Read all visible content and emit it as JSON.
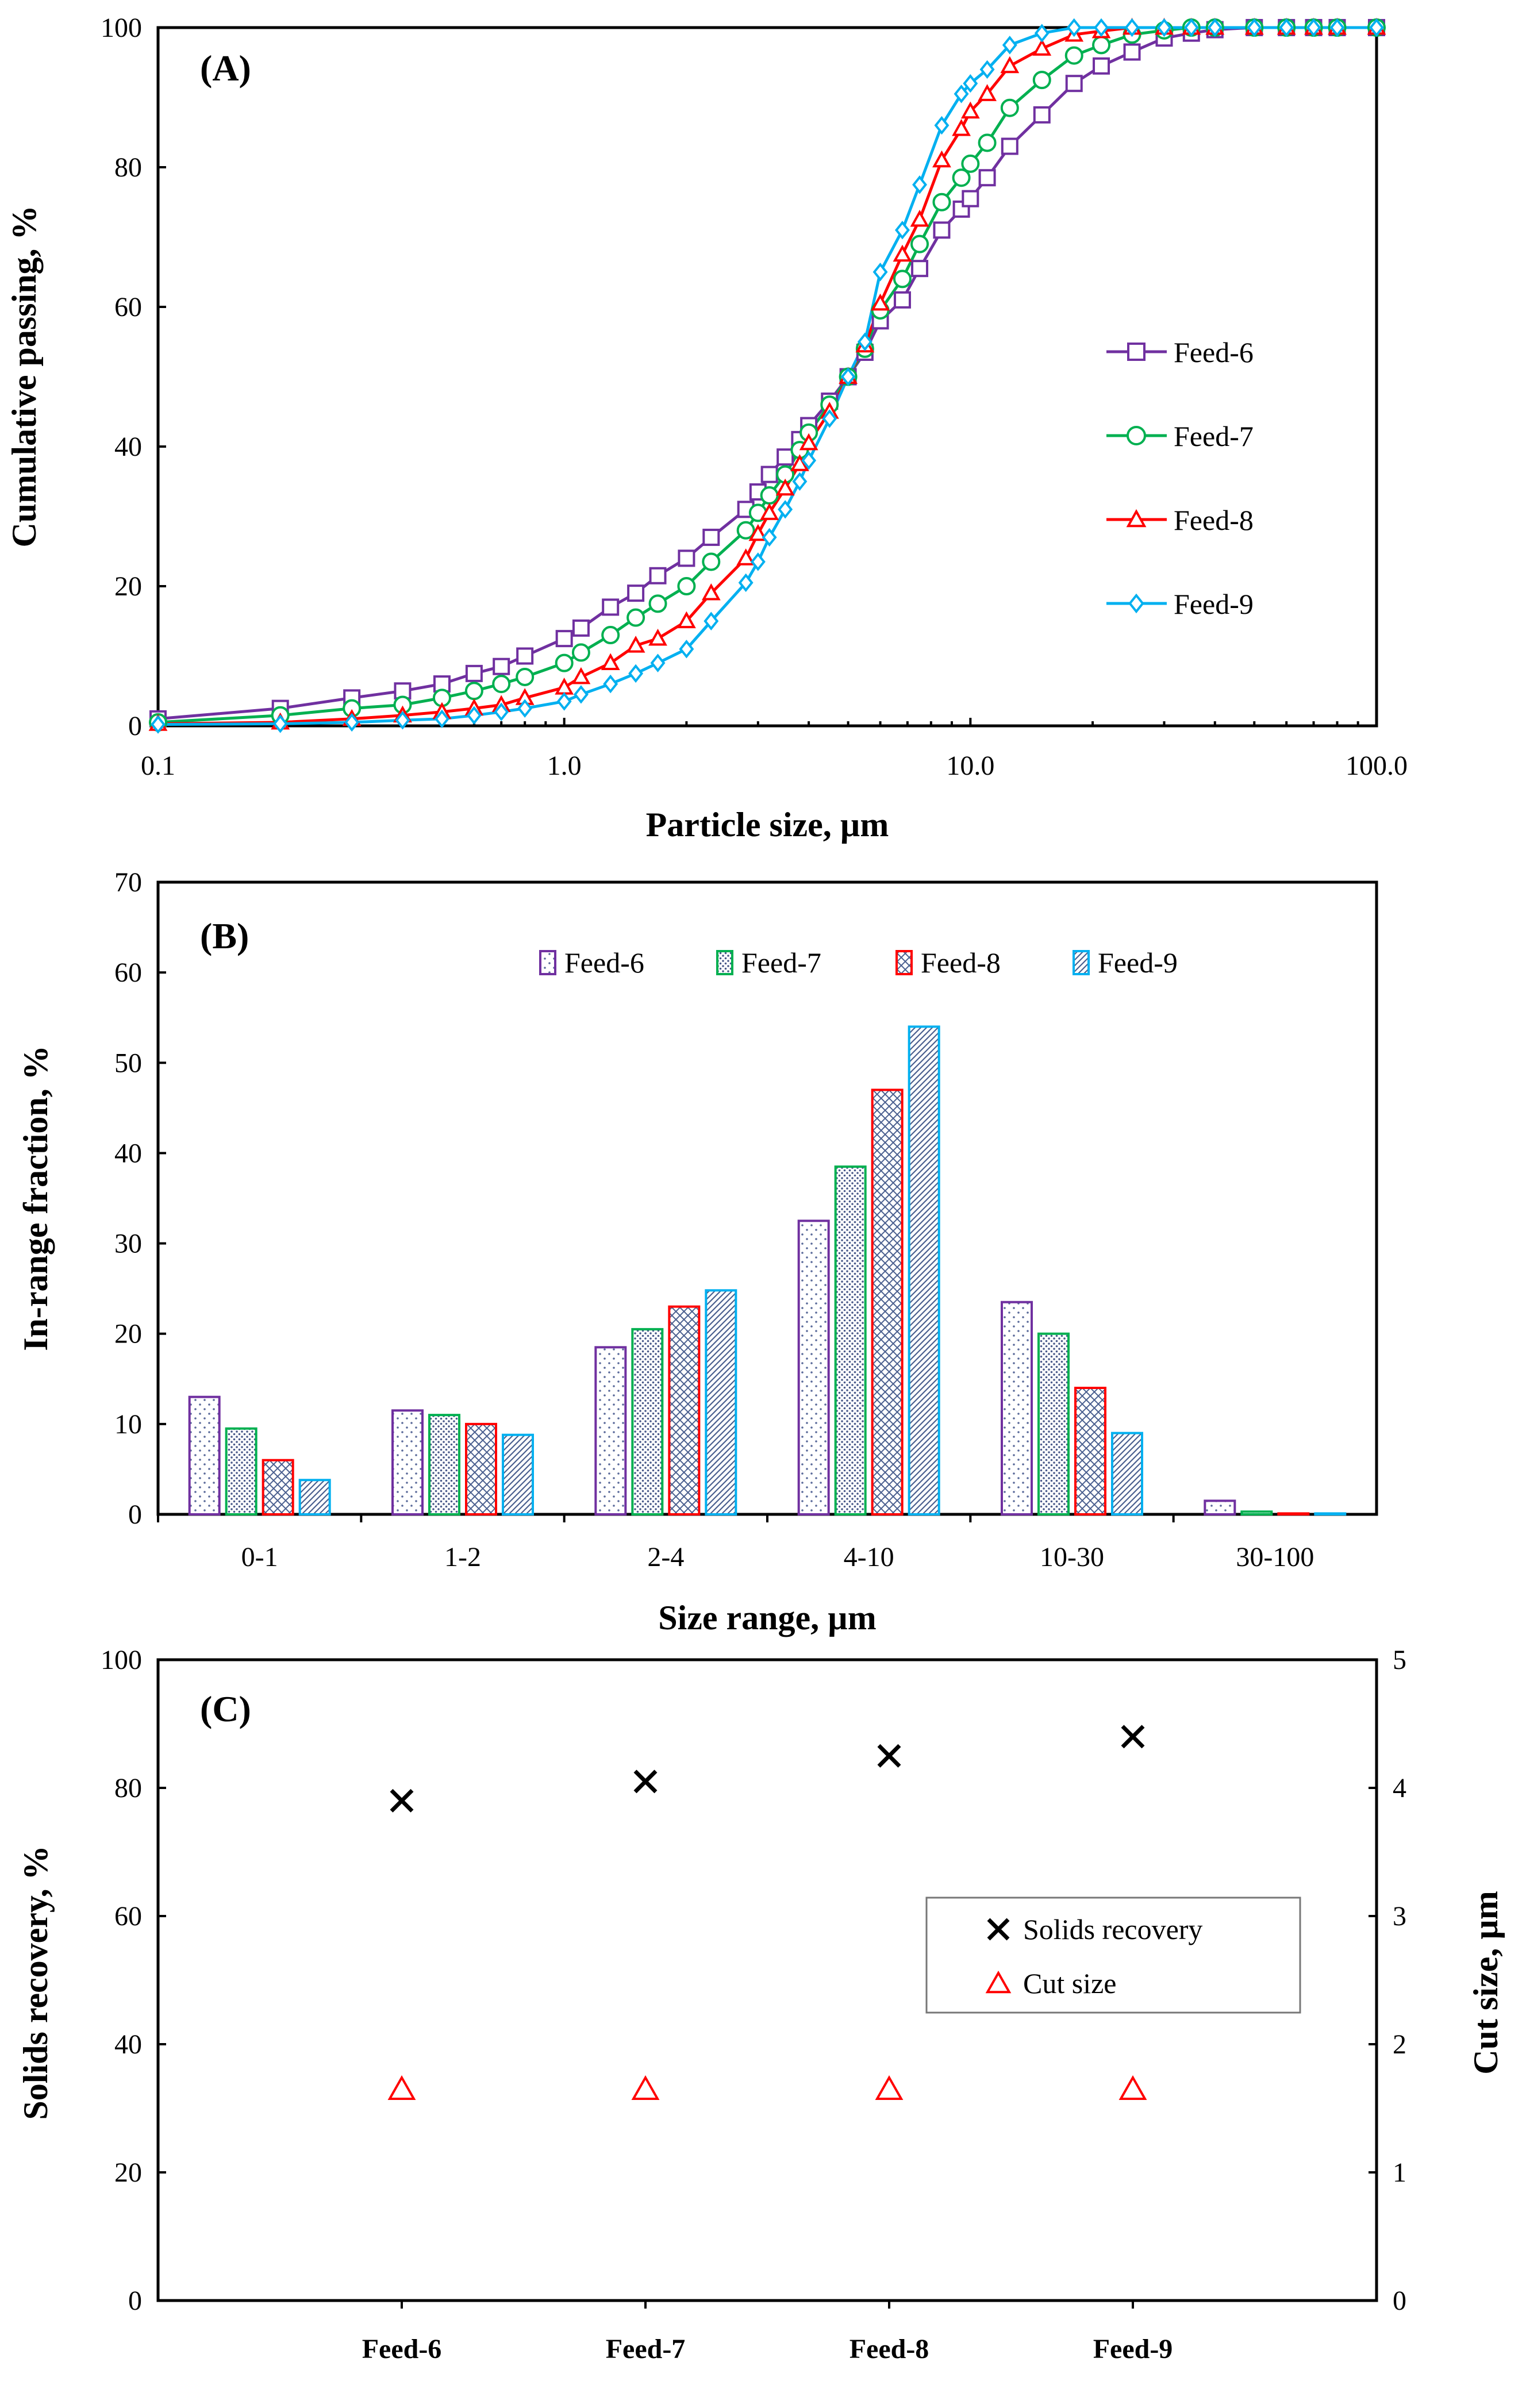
{
  "chart_data": [
    {
      "panel": "(A)",
      "type": "line",
      "xscale": "log",
      "xlim": [
        0.1,
        100.0
      ],
      "ylim": [
        0,
        100
      ],
      "xlabel": "Particle size, µm",
      "ylabel": "Cumulative passing, %",
      "x_ticks": [
        "0.1",
        "1.0",
        "10.0",
        "100.0"
      ],
      "y_ticks": [
        "0",
        "20",
        "40",
        "60",
        "80",
        "100"
      ],
      "legend_position": "right-center",
      "series": [
        {
          "name": "Feed-6",
          "color": "#7030a0",
          "marker": "square",
          "x": [
            0.1,
            0.2,
            0.3,
            0.4,
            0.5,
            0.6,
            0.7,
            0.8,
            1.0,
            1.1,
            1.3,
            1.5,
            1.7,
            2.0,
            2.3,
            2.8,
            3.0,
            3.2,
            3.5,
            3.8,
            4.0,
            4.5,
            5.0,
            5.5,
            6.0,
            6.8,
            7.5,
            8.5,
            9.5,
            10.0,
            11.0,
            12.5,
            15.0,
            18.0,
            21.0,
            25.0,
            30.0,
            35.0,
            40.0,
            50.0,
            60.0,
            70.0,
            80.0,
            100.0
          ],
          "y": [
            1.0,
            2.5,
            4.0,
            5.0,
            6.0,
            7.5,
            8.5,
            10.0,
            12.5,
            14.0,
            17.0,
            19.0,
            21.5,
            24.0,
            27.0,
            31.0,
            33.5,
            36.0,
            38.5,
            41.0,
            43.0,
            46.5,
            50.0,
            53.5,
            58.0,
            61.0,
            65.5,
            71.0,
            74.0,
            75.5,
            78.5,
            83.0,
            87.5,
            92.0,
            94.5,
            96.5,
            98.5,
            99.2,
            99.7,
            100,
            100,
            100,
            100,
            100
          ]
        },
        {
          "name": "Feed-7",
          "color": "#00b050",
          "marker": "circle",
          "x": [
            0.1,
            0.2,
            0.3,
            0.4,
            0.5,
            0.6,
            0.7,
            0.8,
            1.0,
            1.1,
            1.3,
            1.5,
            1.7,
            2.0,
            2.3,
            2.8,
            3.0,
            3.2,
            3.5,
            3.8,
            4.0,
            4.5,
            5.0,
            5.5,
            6.0,
            6.8,
            7.5,
            8.5,
            9.5,
            10.0,
            11.0,
            12.5,
            15.0,
            18.0,
            21.0,
            25.0,
            30.0,
            35.0,
            40.0,
            50.0,
            60.0,
            70.0,
            80.0,
            100.0
          ],
          "y": [
            0.5,
            1.5,
            2.5,
            3.0,
            4.0,
            5.0,
            6.0,
            7.0,
            9.0,
            10.5,
            13.0,
            15.5,
            17.5,
            20.0,
            23.5,
            28.0,
            30.5,
            33.0,
            36.0,
            39.5,
            42.0,
            46.0,
            50.0,
            54.0,
            59.5,
            64.0,
            69.0,
            75.0,
            78.5,
            80.5,
            83.5,
            88.5,
            92.5,
            96.0,
            97.5,
            99.0,
            99.6,
            100,
            100,
            100,
            100,
            100,
            100,
            100
          ]
        },
        {
          "name": "Feed-8",
          "color": "#ff0000",
          "marker": "triangle",
          "x": [
            0.1,
            0.2,
            0.3,
            0.4,
            0.5,
            0.6,
            0.7,
            0.8,
            1.0,
            1.1,
            1.3,
            1.5,
            1.7,
            2.0,
            2.3,
            2.8,
            3.0,
            3.2,
            3.5,
            3.8,
            4.0,
            4.5,
            5.0,
            5.5,
            6.0,
            6.8,
            7.5,
            8.5,
            9.5,
            10.0,
            11.0,
            12.5,
            15.0,
            18.0,
            21.0,
            25.0,
            30.0,
            35.0,
            40.0,
            50.0,
            60.0,
            70.0,
            80.0,
            100.0
          ],
          "y": [
            0.3,
            0.5,
            1.0,
            1.5,
            2.0,
            2.5,
            3.0,
            4.0,
            5.5,
            7.0,
            9.0,
            11.5,
            12.5,
            15.0,
            19.0,
            24.0,
            27.5,
            30.5,
            34.0,
            37.5,
            40.5,
            45.0,
            50.0,
            54.5,
            60.5,
            67.5,
            72.5,
            81.0,
            85.5,
            88.0,
            90.5,
            94.5,
            97.0,
            99.0,
            99.5,
            100,
            100,
            100,
            100,
            100,
            100,
            100,
            100,
            100
          ]
        },
        {
          "name": "Feed-9",
          "color": "#00b0f0",
          "marker": "diamond",
          "x": [
            0.1,
            0.2,
            0.3,
            0.4,
            0.5,
            0.6,
            0.7,
            0.8,
            1.0,
            1.1,
            1.3,
            1.5,
            1.7,
            2.0,
            2.3,
            2.8,
            3.0,
            3.2,
            3.5,
            3.8,
            4.0,
            4.5,
            5.0,
            5.5,
            6.0,
            6.8,
            7.5,
            8.5,
            9.5,
            10.0,
            11.0,
            12.5,
            15.0,
            18.0,
            21.0,
            25.0,
            30.0,
            35.0,
            40.0,
            50.0,
            60.0,
            70.0,
            80.0,
            100.0
          ],
          "y": [
            0.2,
            0.3,
            0.5,
            0.8,
            1.0,
            1.5,
            2.0,
            2.5,
            3.5,
            4.5,
            6.0,
            7.5,
            9.0,
            11.0,
            15.0,
            20.5,
            23.5,
            27.0,
            31.0,
            35.0,
            38.0,
            44.0,
            50.0,
            55.0,
            65.0,
            71.0,
            77.5,
            86.0,
            90.5,
            92.0,
            94.0,
            97.5,
            99.2,
            100,
            100,
            100,
            100,
            100,
            100,
            100,
            100,
            100,
            100,
            100
          ]
        }
      ]
    },
    {
      "panel": "(B)",
      "type": "bar",
      "categories": [
        "0-1",
        "1-2",
        "2-4",
        "4-10",
        "10-30",
        "30-100"
      ],
      "xlabel": "Size range, µm",
      "ylabel": "In-range fraction, %",
      "ylim": [
        0,
        70
      ],
      "y_ticks": [
        "0",
        "10",
        "20",
        "30",
        "40",
        "50",
        "60",
        "70"
      ],
      "legend_position": "top-center",
      "series": [
        {
          "name": "Feed-6",
          "color": "#7030a0",
          "pattern": "dots",
          "values": [
            13.0,
            11.5,
            18.5,
            32.5,
            23.5,
            1.5
          ]
        },
        {
          "name": "Feed-7",
          "color": "#00b050",
          "pattern": "dense-dots",
          "values": [
            9.5,
            11.0,
            20.5,
            38.5,
            20.0,
            0.3
          ]
        },
        {
          "name": "Feed-8",
          "color": "#ff0000",
          "pattern": "crosshatch",
          "values": [
            6.0,
            10.0,
            23.0,
            47.0,
            14.0,
            0.1
          ]
        },
        {
          "name": "Feed-9",
          "color": "#00b0f0",
          "pattern": "diagonal",
          "values": [
            3.8,
            8.8,
            24.8,
            54.0,
            9.0,
            0.1
          ]
        }
      ]
    },
    {
      "panel": "(C)",
      "type": "scatter",
      "categories": [
        "Feed-6",
        "Feed-7",
        "Feed-8",
        "Feed-9"
      ],
      "ylabel": "Solids recovery,  %",
      "y2label": "Cut size, µm",
      "ylim": [
        0,
        100
      ],
      "y2lim": [
        0,
        5
      ],
      "y_ticks": [
        "0",
        "20",
        "40",
        "60",
        "80",
        "100"
      ],
      "y2_ticks": [
        "0",
        "1",
        "2",
        "3",
        "4",
        "5"
      ],
      "legend_position": "right-center",
      "series": [
        {
          "name": "Solids recovery",
          "axis": "left",
          "color": "#000000",
          "marker": "x",
          "values": [
            78,
            81,
            85,
            88
          ]
        },
        {
          "name": "Cut size",
          "axis": "right",
          "color": "#ff0000",
          "marker": "triangle-open",
          "values": [
            1.65,
            1.65,
            1.65,
            1.65
          ]
        }
      ]
    }
  ]
}
